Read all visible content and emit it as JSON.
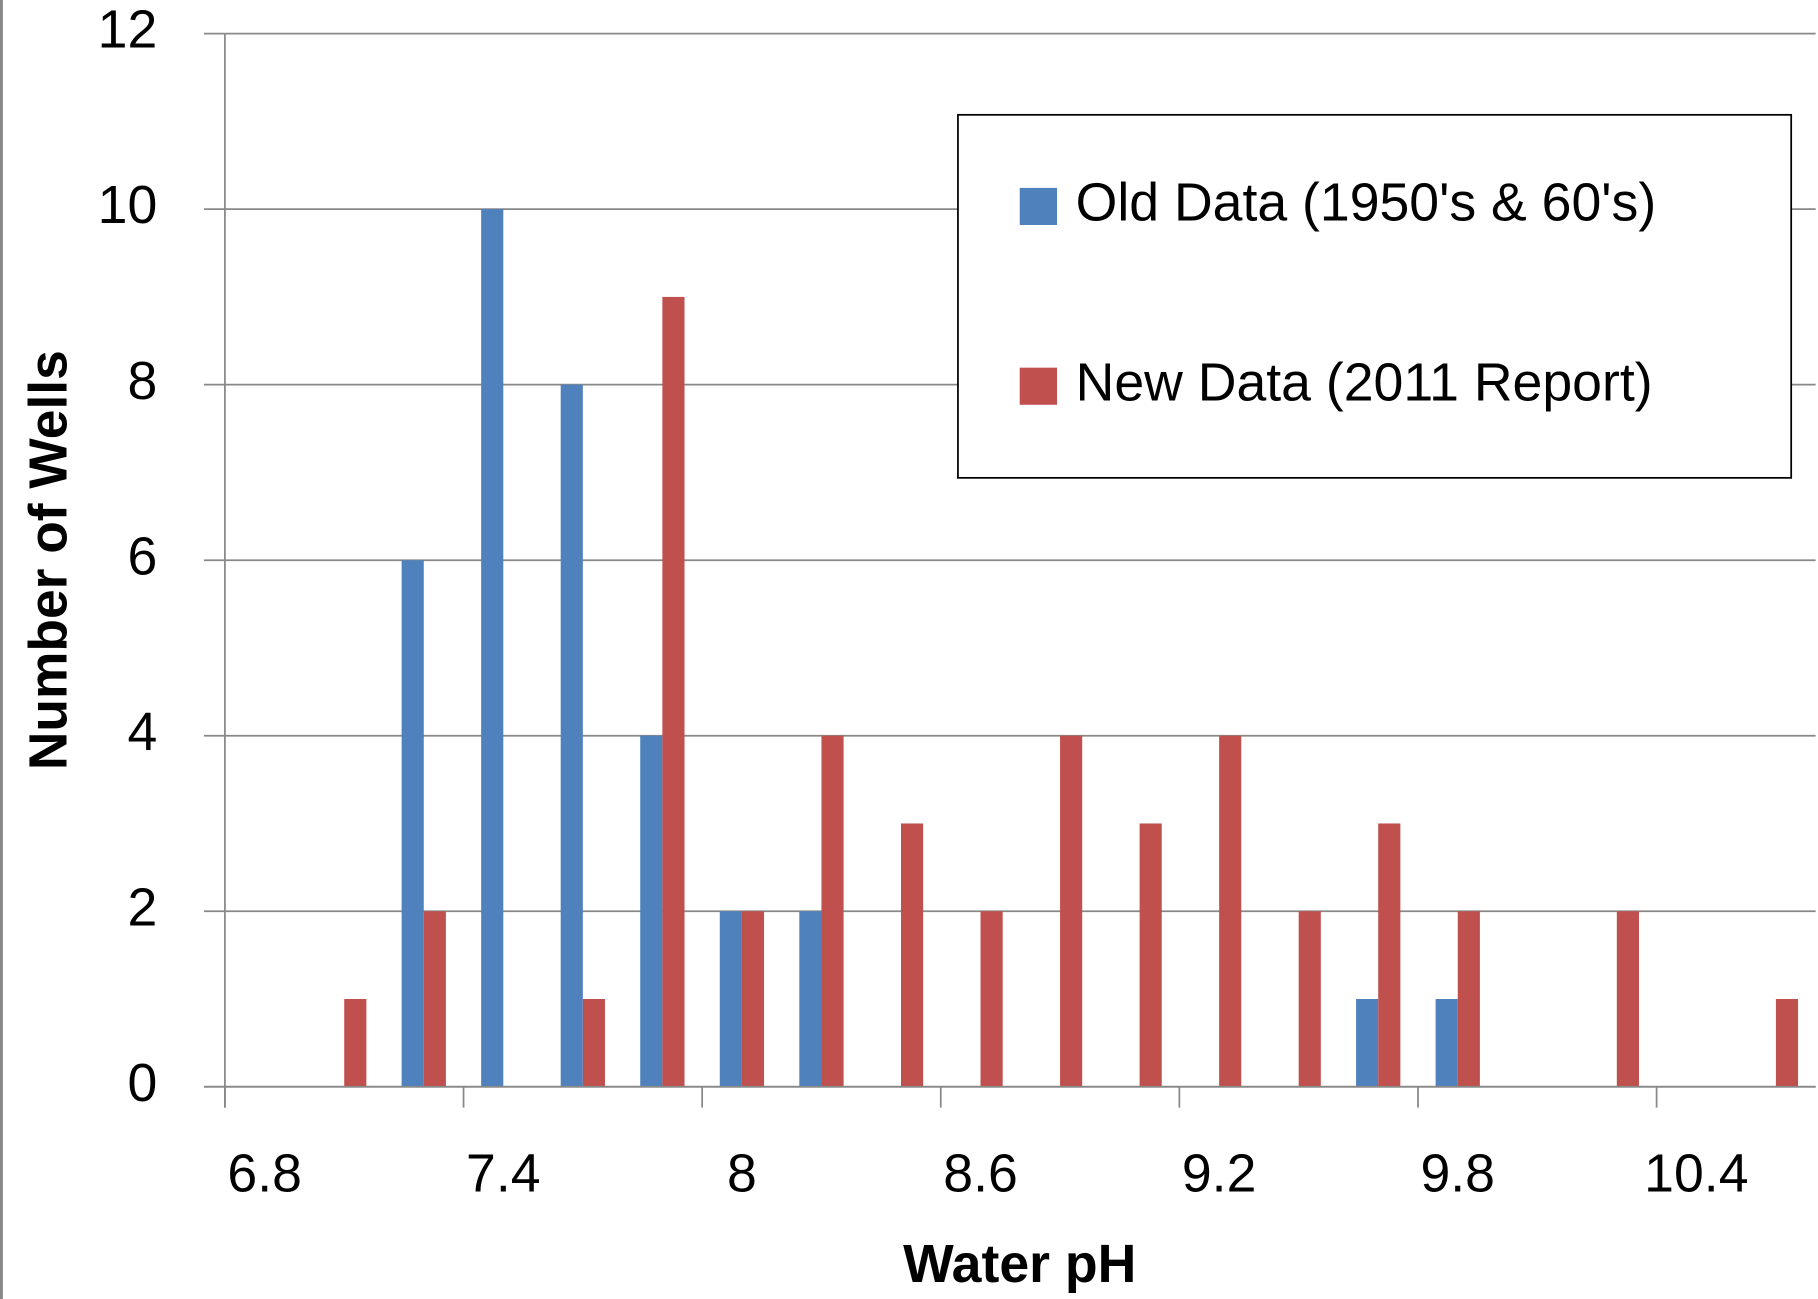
{
  "chart_data": {
    "type": "bar",
    "x_label": "Water pH",
    "y_label": "Number of Wells",
    "categories": [
      "6.8",
      null,
      null,
      "7.4",
      null,
      null,
      "8",
      null,
      null,
      "8.6",
      null,
      null,
      "9.2",
      null,
      null,
      "9.8",
      null,
      null,
      "10.4",
      null
    ],
    "series": [
      {
        "name": "Old Data (1950's & 60's)",
        "color": "#4f81bd",
        "values": [
          0,
          0,
          6,
          10,
          8,
          4,
          2,
          2,
          0,
          0,
          0,
          0,
          0,
          0,
          1,
          1,
          0,
          0,
          0,
          0
        ]
      },
      {
        "name": "New Data (2011 Report)",
        "color": "#c0504d",
        "values": [
          0,
          1,
          2,
          0,
          1,
          9,
          2,
          4,
          3,
          2,
          4,
          3,
          4,
          2,
          3,
          2,
          0,
          2,
          0,
          1
        ]
      }
    ],
    "ylim": [
      0,
      12
    ],
    "yticks": [
      0,
      2,
      4,
      6,
      8,
      10,
      12
    ],
    "grid": true,
    "legend": "top-right"
  }
}
